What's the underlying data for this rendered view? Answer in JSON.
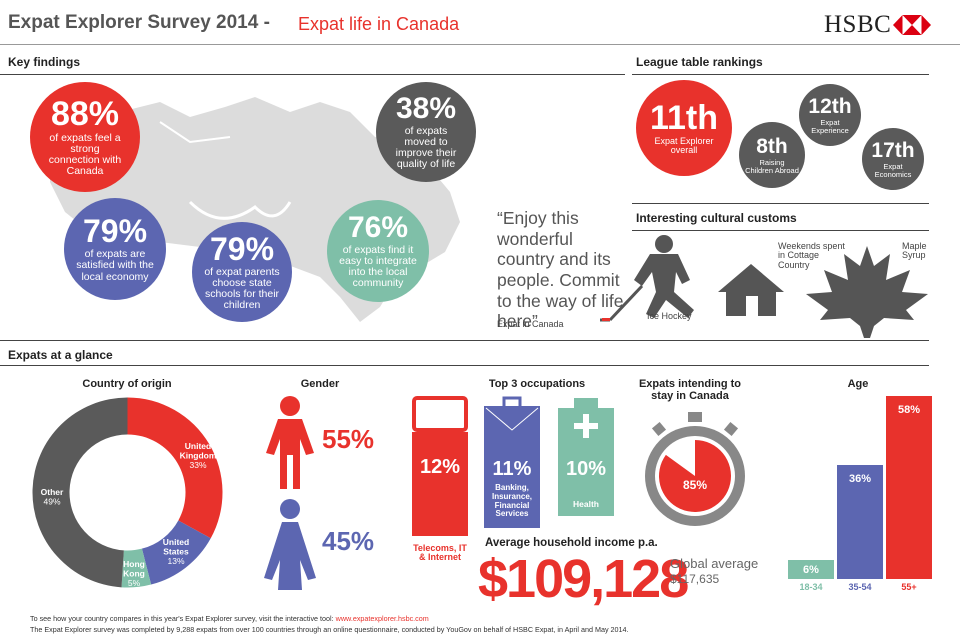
{
  "header": {
    "title": "Expat Explorer Survey 2014 -",
    "subtitle": "Expat life in Canada",
    "logo_text": "HSBC"
  },
  "key_findings": {
    "heading": "Key findings",
    "stats": [
      {
        "value": "88%",
        "text": "of expats feel a strong connection with Canada",
        "color": "#e8322c"
      },
      {
        "value": "38%",
        "text": "of expats moved to improve their quality of life",
        "color": "#5a5a5a"
      },
      {
        "value": "79%",
        "text": "of expats are satisfied with the local economy",
        "color": "#5c66b1"
      },
      {
        "value": "79%",
        "text": "of expat parents choose state schools for their children",
        "color": "#5c66b1"
      },
      {
        "value": "76%",
        "text": "of expats find it easy to integrate into the local community",
        "color": "#7fbfa8"
      }
    ],
    "quote": "“Enjoy this wonderful country and its people. Commit to the way of life here”",
    "quote_source": "Expat in Canada"
  },
  "league": {
    "heading": "League table rankings",
    "items": [
      {
        "rank": "11th",
        "label": "Expat Explorer overall"
      },
      {
        "rank": "12th",
        "label": "Expat Experience"
      },
      {
        "rank": "8th",
        "label": "Raising Children Abroad"
      },
      {
        "rank": "17th",
        "label": "Expat Economics"
      }
    ]
  },
  "customs": {
    "heading": "Interesting cultural customs",
    "items": [
      "Ice Hockey",
      "Weekends spent in Cottage Country",
      "Maple Syrup"
    ]
  },
  "glance": {
    "heading": "Expats at a glance",
    "origin": {
      "heading": "Country of origin",
      "slices": [
        {
          "label": "United Kingdom",
          "pct": "33%",
          "value": 33,
          "color": "#e8322c"
        },
        {
          "label": "United States",
          "pct": "13%",
          "value": 13,
          "color": "#5c66b1"
        },
        {
          "label": "Hong Kong",
          "pct": "5%",
          "value": 5,
          "color": "#7fbfa8"
        },
        {
          "label": "Other",
          "pct": "49%",
          "value": 49,
          "color": "#5a5a5a"
        }
      ]
    },
    "gender": {
      "heading": "Gender",
      "female": "55%",
      "male": "45%"
    },
    "occupations": {
      "heading": "Top 3 occupations",
      "items": [
        {
          "value": "12%",
          "label": "Telecoms, IT & Internet",
          "color": "#e8322c"
        },
        {
          "value": "11%",
          "label": "Banking, Insurance, Financial Services",
          "color": "#5c66b1"
        },
        {
          "value": "10%",
          "label": "Health",
          "color": "#7fbfa8"
        }
      ]
    },
    "stay": {
      "heading": "Expats intending to stay in Canada",
      "value": "85%",
      "fraction": 0.85
    },
    "income": {
      "heading": "Average household income p.a.",
      "value": "$109,128",
      "global_label": "Global average",
      "global_value": "$117,635"
    },
    "age": {
      "heading": "Age",
      "groups": [
        {
          "label": "18-34",
          "pct": "6%",
          "value": 6,
          "color": "#7fbfa8"
        },
        {
          "label": "35-54",
          "pct": "36%",
          "value": 36,
          "color": "#5c66b1"
        },
        {
          "label": "55+",
          "pct": "58%",
          "value": 58,
          "color": "#e8322c"
        }
      ]
    }
  },
  "footer": {
    "line1_text": "To see how your country compares in this year's Expat Explorer survey, visit the interactive tool:",
    "line1_link": "www.expatexplorer.hsbc.com",
    "line2": "The Expat Explorer survey was completed by 9,288 expats from over 100 countries through an online questionnaire, conducted by YouGov on behalf of HSBC Expat, in April and May 2014."
  },
  "chart_data": [
    {
      "type": "pie",
      "title": "Country of origin",
      "categories": [
        "United Kingdom",
        "United States",
        "Hong Kong",
        "Other"
      ],
      "values": [
        33,
        13,
        5,
        49
      ]
    },
    {
      "type": "bar",
      "title": "Age",
      "categories": [
        "18-34",
        "35-54",
        "55+"
      ],
      "values": [
        6,
        36,
        58
      ]
    }
  ]
}
